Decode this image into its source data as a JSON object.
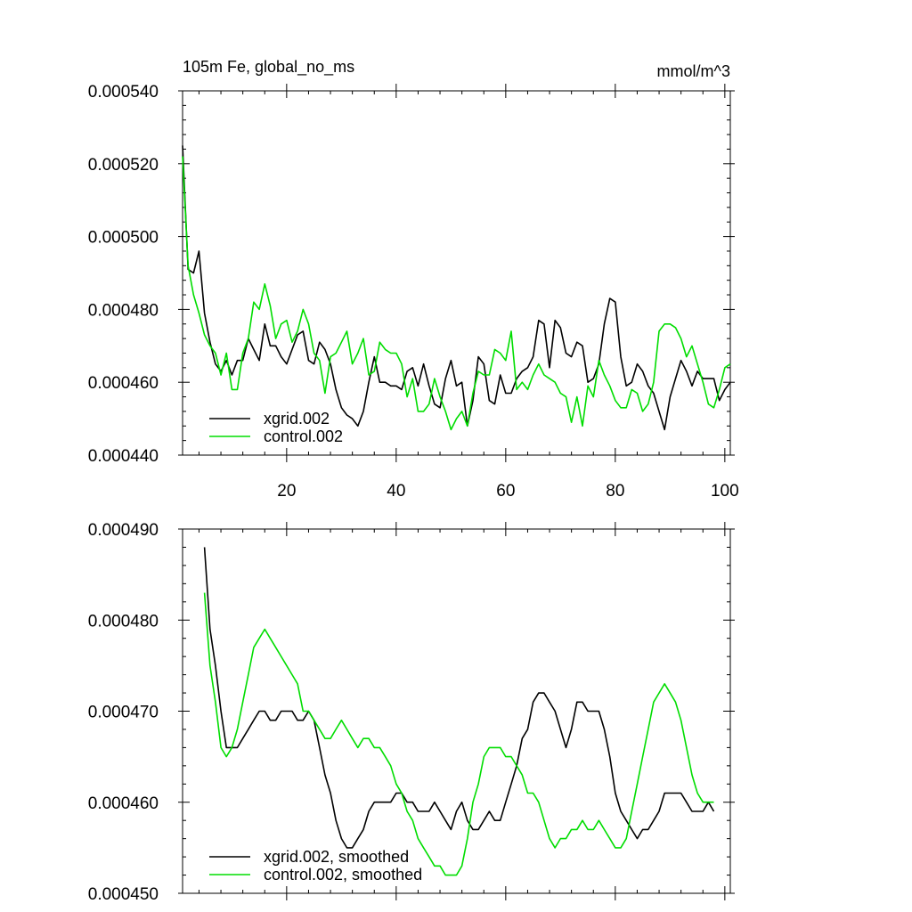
{
  "chart_data": [
    {
      "type": "line",
      "title": "105m Fe, global_no_ms",
      "units": "mmol/m^3",
      "xlim": [
        1,
        101
      ],
      "ylim": [
        0.00044,
        0.00054
      ],
      "xticks": [
        20,
        40,
        60,
        80,
        100
      ],
      "xtick_labels": [
        "20",
        "40",
        "60",
        "80",
        "100"
      ],
      "yticks": [
        0.00044,
        0.00046,
        0.00048,
        0.0005,
        0.00052,
        0.00054
      ],
      "ytick_labels": [
        "0.000440",
        "0.000460",
        "0.000480",
        "0.000500",
        "0.000520",
        "0.000540"
      ],
      "legend_position": "bottom-left",
      "series": [
        {
          "name": "xgrid.002",
          "color": "#000000",
          "x": [
            1,
            2,
            3,
            4,
            5,
            6,
            7,
            8,
            9,
            10,
            11,
            12,
            13,
            14,
            15,
            16,
            17,
            18,
            19,
            20,
            21,
            22,
            23,
            24,
            25,
            26,
            27,
            28,
            29,
            30,
            31,
            32,
            33,
            34,
            35,
            36,
            37,
            38,
            39,
            40,
            41,
            42,
            43,
            44,
            45,
            46,
            47,
            48,
            49,
            50,
            51,
            52,
            53,
            54,
            55,
            56,
            57,
            58,
            59,
            60,
            61,
            62,
            63,
            64,
            65,
            66,
            67,
            68,
            69,
            70,
            71,
            72,
            73,
            74,
            75,
            76,
            77,
            78,
            79,
            80,
            81,
            82,
            83,
            84,
            85,
            86,
            87,
            88,
            89,
            90,
            91,
            92,
            93,
            94,
            95,
            96,
            97,
            98,
            99,
            100,
            101
          ],
          "values": [
            0.000525,
            0.000491,
            0.00049,
            0.000496,
            0.000479,
            0.000471,
            0.000465,
            0.000463,
            0.000466,
            0.000462,
            0.000466,
            0.000466,
            0.000472,
            0.000469,
            0.000466,
            0.000476,
            0.00047,
            0.00047,
            0.000467,
            0.000465,
            0.000469,
            0.000473,
            0.000474,
            0.000466,
            0.000465,
            0.000471,
            0.000469,
            0.000465,
            0.000458,
            0.000453,
            0.000451,
            0.00045,
            0.000448,
            0.000452,
            0.00046,
            0.000467,
            0.00046,
            0.00046,
            0.000459,
            0.000459,
            0.000458,
            0.000463,
            0.000464,
            0.000459,
            0.000465,
            0.000459,
            0.000454,
            0.000453,
            0.000461,
            0.000466,
            0.000459,
            0.00046,
            0.000448,
            0.000455,
            0.000467,
            0.000465,
            0.000455,
            0.000454,
            0.000462,
            0.000457,
            0.000457,
            0.000461,
            0.000463,
            0.000464,
            0.000467,
            0.000477,
            0.000476,
            0.000464,
            0.000477,
            0.000475,
            0.000468,
            0.000467,
            0.000471,
            0.00047,
            0.00046,
            0.000461,
            0.000465,
            0.000476,
            0.000483,
            0.000482,
            0.000467,
            0.000459,
            0.00046,
            0.000465,
            0.000463,
            0.000459,
            0.000457,
            0.000452,
            0.000447,
            0.000456,
            0.000461,
            0.000466,
            0.000463,
            0.000459,
            0.000463,
            0.000461,
            0.000461,
            0.000461,
            0.000455,
            0.000458,
            0.00046
          ]
        },
        {
          "name": "control.002",
          "color": "#00dd00",
          "x": [
            1,
            2,
            3,
            4,
            5,
            6,
            7,
            8,
            9,
            10,
            11,
            12,
            13,
            14,
            15,
            16,
            17,
            18,
            19,
            20,
            21,
            22,
            23,
            24,
            25,
            26,
            27,
            28,
            29,
            30,
            31,
            32,
            33,
            34,
            35,
            36,
            37,
            38,
            39,
            40,
            41,
            42,
            43,
            44,
            45,
            46,
            47,
            48,
            49,
            50,
            51,
            52,
            53,
            54,
            55,
            56,
            57,
            58,
            59,
            60,
            61,
            62,
            63,
            64,
            65,
            66,
            67,
            68,
            69,
            70,
            71,
            72,
            73,
            74,
            75,
            76,
            77,
            78,
            79,
            80,
            81,
            82,
            83,
            84,
            85,
            86,
            87,
            88,
            89,
            90,
            91,
            92,
            93,
            94,
            95,
            96,
            97,
            98,
            99,
            100,
            101
          ],
          "values": [
            0.000522,
            0.000492,
            0.000484,
            0.000479,
            0.000473,
            0.00047,
            0.000468,
            0.000462,
            0.000468,
            0.000458,
            0.000458,
            0.000468,
            0.000472,
            0.000482,
            0.00048,
            0.000487,
            0.000481,
            0.000472,
            0.000476,
            0.000477,
            0.000471,
            0.000474,
            0.00048,
            0.000476,
            0.000468,
            0.000466,
            0.000457,
            0.000467,
            0.000468,
            0.000471,
            0.000474,
            0.000465,
            0.000468,
            0.000472,
            0.000462,
            0.000463,
            0.000471,
            0.000469,
            0.000468,
            0.000468,
            0.000465,
            0.000456,
            0.000461,
            0.000452,
            0.000452,
            0.000454,
            0.000461,
            0.000456,
            0.000452,
            0.000447,
            0.00045,
            0.000452,
            0.000448,
            0.000457,
            0.000463,
            0.000462,
            0.000462,
            0.000469,
            0.000468,
            0.000466,
            0.000474,
            0.000458,
            0.00046,
            0.000458,
            0.000462,
            0.000465,
            0.000462,
            0.000461,
            0.00046,
            0.000457,
            0.000456,
            0.000449,
            0.000456,
            0.000448,
            0.000459,
            0.000456,
            0.000466,
            0.000462,
            0.000459,
            0.000455,
            0.000453,
            0.000453,
            0.000458,
            0.000457,
            0.000452,
            0.000454,
            0.00046,
            0.000474,
            0.000476,
            0.000476,
            0.000475,
            0.000472,
            0.000467,
            0.00047,
            0.000465,
            0.00046,
            0.000454,
            0.000453,
            0.000458,
            0.000464,
            0.000465
          ]
        }
      ]
    },
    {
      "type": "line",
      "title": "",
      "xlim": [
        1,
        101
      ],
      "ylim": [
        0.00045,
        0.00049
      ],
      "xticks": [
        20,
        40,
        60,
        80,
        100
      ],
      "xtick_labels": [],
      "yticks": [
        0.00045,
        0.00046,
        0.00047,
        0.00048,
        0.00049
      ],
      "ytick_labels": [
        "0.000450",
        "0.000460",
        "0.000470",
        "0.000480",
        "0.000490"
      ],
      "legend_position": "bottom-left",
      "series": [
        {
          "name": "xgrid.002, smoothed",
          "color": "#000000",
          "x": [
            5,
            6,
            7,
            8,
            9,
            10,
            11,
            12,
            13,
            14,
            15,
            16,
            17,
            18,
            19,
            20,
            21,
            22,
            23,
            24,
            25,
            26,
            27,
            28,
            29,
            30,
            31,
            32,
            33,
            34,
            35,
            36,
            37,
            38,
            39,
            40,
            41,
            42,
            43,
            44,
            45,
            46,
            47,
            48,
            49,
            50,
            51,
            52,
            53,
            54,
            55,
            56,
            57,
            58,
            59,
            60,
            61,
            62,
            63,
            64,
            65,
            66,
            67,
            68,
            69,
            70,
            71,
            72,
            73,
            74,
            75,
            76,
            77,
            78,
            79,
            80,
            81,
            82,
            83,
            84,
            85,
            86,
            87,
            88,
            89,
            90,
            91,
            92,
            93,
            94,
            95,
            96,
            97,
            98
          ],
          "values": [
            0.000488,
            0.000479,
            0.000475,
            0.00047,
            0.000466,
            0.000466,
            0.000466,
            0.000467,
            0.000468,
            0.000469,
            0.00047,
            0.00047,
            0.000469,
            0.000469,
            0.00047,
            0.00047,
            0.00047,
            0.000469,
            0.000469,
            0.00047,
            0.000469,
            0.000466,
            0.000463,
            0.000461,
            0.000458,
            0.000456,
            0.000455,
            0.000455,
            0.000456,
            0.000457,
            0.000459,
            0.00046,
            0.00046,
            0.00046,
            0.00046,
            0.000461,
            0.000461,
            0.00046,
            0.00046,
            0.000459,
            0.000459,
            0.000459,
            0.00046,
            0.000459,
            0.000458,
            0.000457,
            0.000459,
            0.00046,
            0.000458,
            0.000457,
            0.000457,
            0.000458,
            0.000459,
            0.000458,
            0.000458,
            0.00046,
            0.000462,
            0.000464,
            0.000467,
            0.000468,
            0.000471,
            0.000472,
            0.000472,
            0.000471,
            0.00047,
            0.000468,
            0.000466,
            0.000468,
            0.000471,
            0.000471,
            0.00047,
            0.00047,
            0.00047,
            0.000468,
            0.000465,
            0.000461,
            0.000459,
            0.000458,
            0.000457,
            0.000456,
            0.000457,
            0.000457,
            0.000458,
            0.000459,
            0.000461,
            0.000461,
            0.000461,
            0.000461,
            0.00046,
            0.000459,
            0.000459,
            0.000459,
            0.00046,
            0.000459
          ]
        },
        {
          "name": "control.002, smoothed",
          "color": "#00dd00",
          "x": [
            5,
            6,
            7,
            8,
            9,
            10,
            11,
            12,
            13,
            14,
            15,
            16,
            17,
            18,
            19,
            20,
            21,
            22,
            23,
            24,
            25,
            26,
            27,
            28,
            29,
            30,
            31,
            32,
            33,
            34,
            35,
            36,
            37,
            38,
            39,
            40,
            41,
            42,
            43,
            44,
            45,
            46,
            47,
            48,
            49,
            50,
            51,
            52,
            53,
            54,
            55,
            56,
            57,
            58,
            59,
            60,
            61,
            62,
            63,
            64,
            65,
            66,
            67,
            68,
            69,
            70,
            71,
            72,
            73,
            74,
            75,
            76,
            77,
            78,
            79,
            80,
            81,
            82,
            83,
            84,
            85,
            86,
            87,
            88,
            89,
            90,
            91,
            92,
            93,
            94,
            95,
            96,
            97,
            98
          ],
          "values": [
            0.000483,
            0.000475,
            0.000471,
            0.000466,
            0.000465,
            0.000466,
            0.000468,
            0.000471,
            0.000474,
            0.000477,
            0.000478,
            0.000479,
            0.000478,
            0.000477,
            0.000476,
            0.000475,
            0.000474,
            0.000473,
            0.00047,
            0.00047,
            0.000469,
            0.000468,
            0.000467,
            0.000467,
            0.000468,
            0.000469,
            0.000468,
            0.000467,
            0.000466,
            0.000467,
            0.000467,
            0.000466,
            0.000466,
            0.000465,
            0.000464,
            0.000462,
            0.000461,
            0.000459,
            0.000458,
            0.000456,
            0.000455,
            0.000454,
            0.000453,
            0.000453,
            0.000452,
            0.000452,
            0.000452,
            0.000453,
            0.000456,
            0.00046,
            0.000462,
            0.000465,
            0.000466,
            0.000466,
            0.000466,
            0.000465,
            0.000465,
            0.000464,
            0.000463,
            0.000461,
            0.000461,
            0.00046,
            0.000458,
            0.000456,
            0.000455,
            0.000456,
            0.000456,
            0.000457,
            0.000457,
            0.000458,
            0.000457,
            0.000457,
            0.000458,
            0.000457,
            0.000456,
            0.000455,
            0.000455,
            0.000456,
            0.000459,
            0.000462,
            0.000465,
            0.000468,
            0.000471,
            0.000472,
            0.000473,
            0.000472,
            0.000471,
            0.000469,
            0.000466,
            0.000463,
            0.000461,
            0.00046,
            0.00046,
            0.00046
          ]
        }
      ]
    }
  ]
}
